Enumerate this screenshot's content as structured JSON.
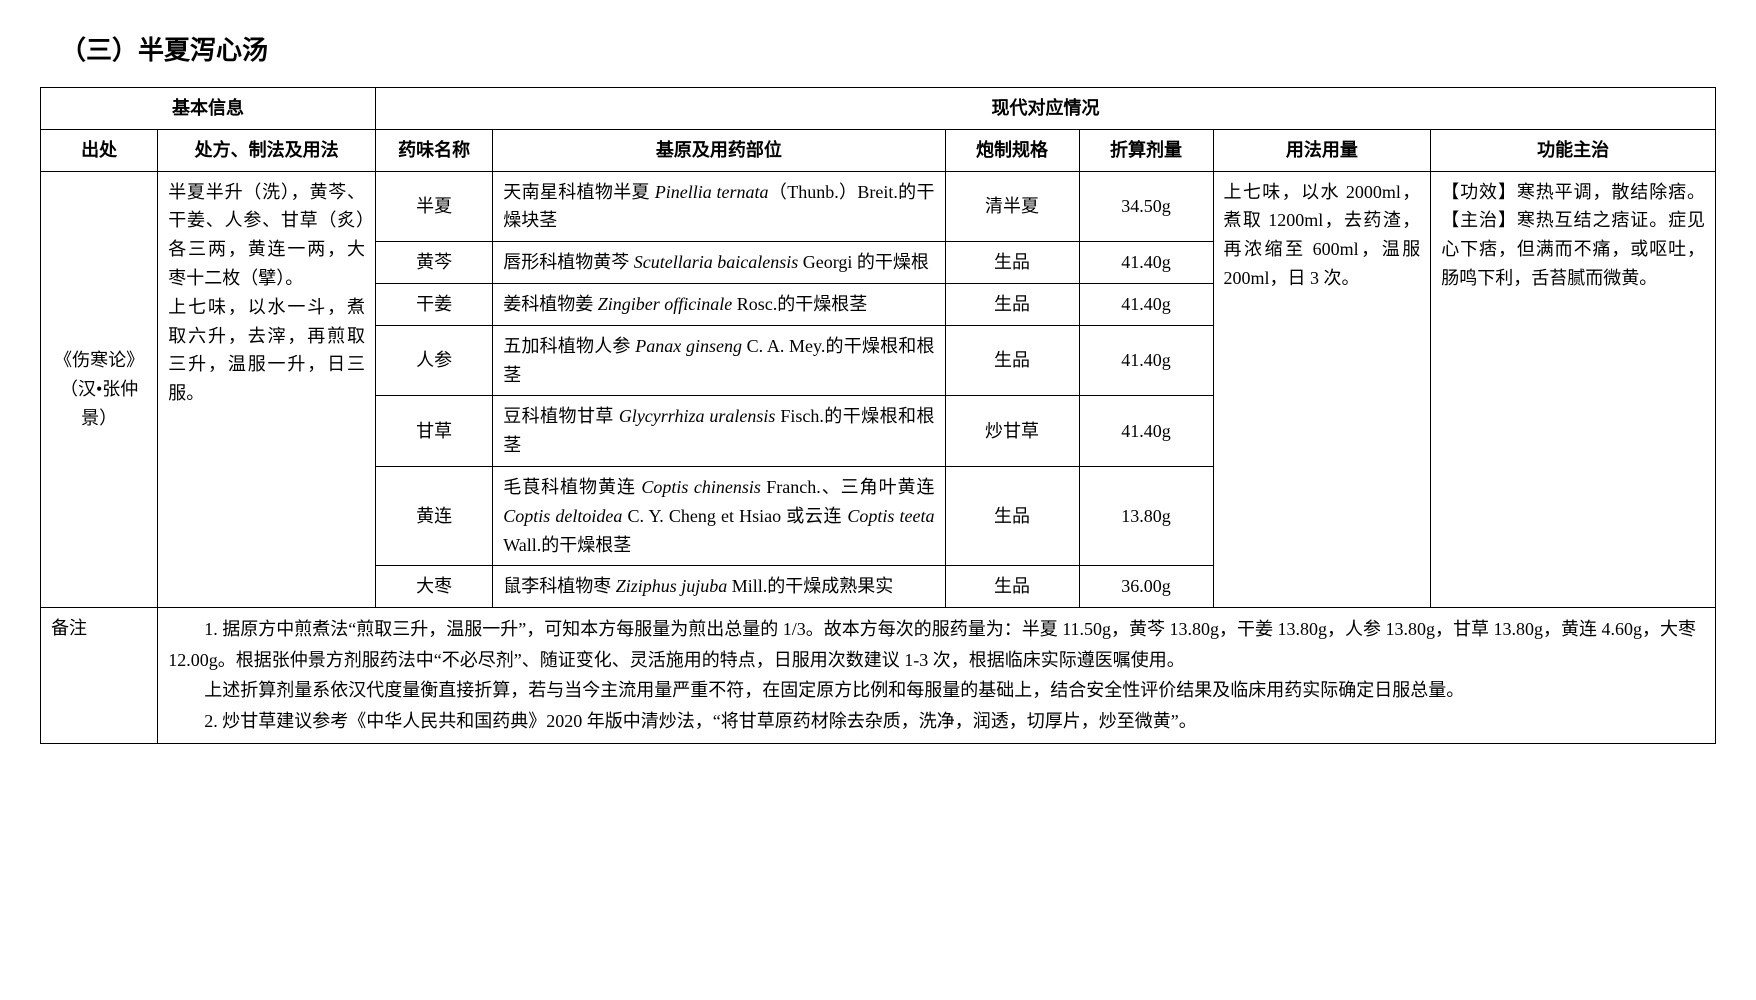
{
  "title": "（三）半夏泻心汤",
  "header": {
    "basic_info": "基本信息",
    "modern": "现代对应情况",
    "source": "出处",
    "recipe": "处方、制法及用法",
    "name": "药味名称",
    "origin": "基原及用药部位",
    "prep": "炮制规格",
    "dose": "折算剂量",
    "usage": "用法用量",
    "func": "功能主治"
  },
  "source": "《伤寒论》（汉•张仲景）",
  "recipe": "半夏半升（洗），黄芩、干姜、人参、甘草（炙）各三两，黄连一两，大枣十二枚（擘）。\n上七味，以水一斗，煮取六升，去滓，再煎取三升，温服一升，日三服。",
  "usage": "上七味，以水 2000ml，煮取 1200ml，去药渣，再浓缩至 600ml，温服 200ml，日 3 次。",
  "func": "【功效】寒热平调，散结除痞。【主治】寒热互结之痞证。症见心下痞，但满而不痛，或呕吐，肠鸣下利，舌苔腻而微黄。",
  "rows": [
    {
      "name": "半夏",
      "origin_pre": "天南星科植物半夏 ",
      "origin_latin": "Pinellia ternata",
      "origin_post": "（Thunb.）Breit.的干燥块茎",
      "prep": "清半夏",
      "dose": "34.50g"
    },
    {
      "name": "黄芩",
      "origin_pre": "唇形科植物黄芩 ",
      "origin_latin": "Scutellaria baicalensis",
      "origin_post": " Georgi 的干燥根",
      "prep": "生品",
      "dose": "41.40g"
    },
    {
      "name": "干姜",
      "origin_pre": "姜科植物姜 ",
      "origin_latin": "Zingiber officinale",
      "origin_post": " Rosc.的干燥根茎",
      "prep": "生品",
      "dose": "41.40g"
    },
    {
      "name": "人参",
      "origin_pre": "五加科植物人参 ",
      "origin_latin": "Panax ginseng",
      "origin_post": " C. A. Mey.的干燥根和根茎",
      "prep": "生品",
      "dose": "41.40g"
    },
    {
      "name": "甘草",
      "origin_pre": "豆科植物甘草 ",
      "origin_latin": "Glycyrrhiza uralensis",
      "origin_post": " Fisch.的干燥根和根茎",
      "prep": "炒甘草",
      "dose": "41.40g"
    },
    {
      "name": "黄连",
      "origin_full": "毛茛科植物黄连 <i>Coptis chinensis</i> Franch.、三角叶黄连 <i>Coptis deltoidea</i> C. Y. Cheng et Hsiao 或云连 <i>Coptis teeta</i> Wall.的干燥根茎",
      "prep": "生品",
      "dose": "13.80g"
    },
    {
      "name": "大枣",
      "origin_pre": "鼠李科植物枣 ",
      "origin_latin": "Ziziphus jujuba",
      "origin_post": " Mill.的干燥成熟果实",
      "prep": "生品",
      "dose": "36.00g"
    }
  ],
  "notes_label": "备注",
  "notes": [
    "1. 据原方中煎煮法“煎取三升，温服一升”，可知本方每服量为煎出总量的 1/3。故本方每次的服药量为：半夏 11.50g，黄芩 13.80g，干姜 13.80g，人参 13.80g，甘草 13.80g，黄连 4.60g，大枣 12.00g。根据张仲景方剂服药法中“不必尽剂”、随证变化、灵活施用的特点，日服用次数建议 1-3 次，根据临床实际遵医嘱使用。",
    "上述折算剂量系依汉代度量衡直接折算，若与当今主流用量严重不符，在固定原方比例和每服量的基础上，结合安全性评价结果及临床用药实际确定日服总量。",
    "2. 炒甘草建议参考《中华人民共和国药典》2020 年版中清炒法，“将甘草原药材除去杂质，洗净，润透，切厚片，炒至微黄”。"
  ]
}
